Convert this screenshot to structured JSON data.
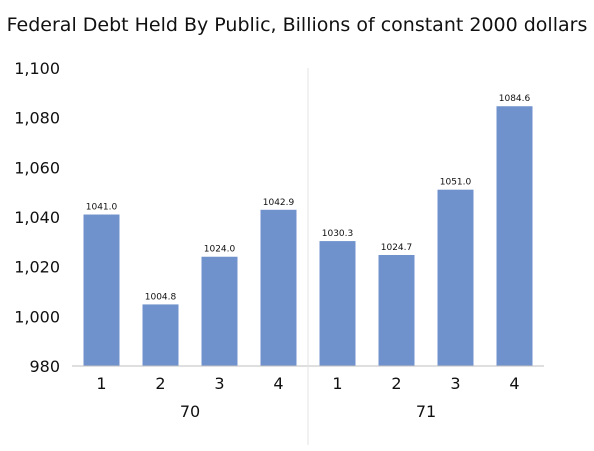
{
  "chart_data": {
    "type": "bar",
    "title": "Federal Debt Held By Public, Billions of constant 2000 dollars",
    "xlabel": "",
    "ylabel": "",
    "ylim": [
      980,
      1100
    ],
    "yticks": [
      "980",
      "1,000",
      "1,020",
      "1,040",
      "1,060",
      "1,080",
      "1,100"
    ],
    "ytick_values": [
      980,
      1000,
      1020,
      1040,
      1060,
      1080,
      1100
    ],
    "grid": false,
    "groups": [
      {
        "label": "70",
        "categories": [
          "1",
          "2",
          "3",
          "4"
        ]
      },
      {
        "label": "71",
        "categories": [
          "1",
          "2",
          "3",
          "4"
        ]
      }
    ],
    "categories": [
      "1",
      "2",
      "3",
      "4",
      "1",
      "2",
      "3",
      "4"
    ],
    "values": [
      1041.0,
      1004.8,
      1024.0,
      1042.9,
      1030.3,
      1024.7,
      1051.0,
      1084.6
    ],
    "data_labels": [
      "1041.0",
      "1004.8",
      "1024.0",
      "1042.9",
      "1030.3",
      "1024.7",
      "1051.0",
      "1084.6"
    ],
    "bar_color": "#7092CC",
    "axis_color": "#BFBFBF"
  }
}
